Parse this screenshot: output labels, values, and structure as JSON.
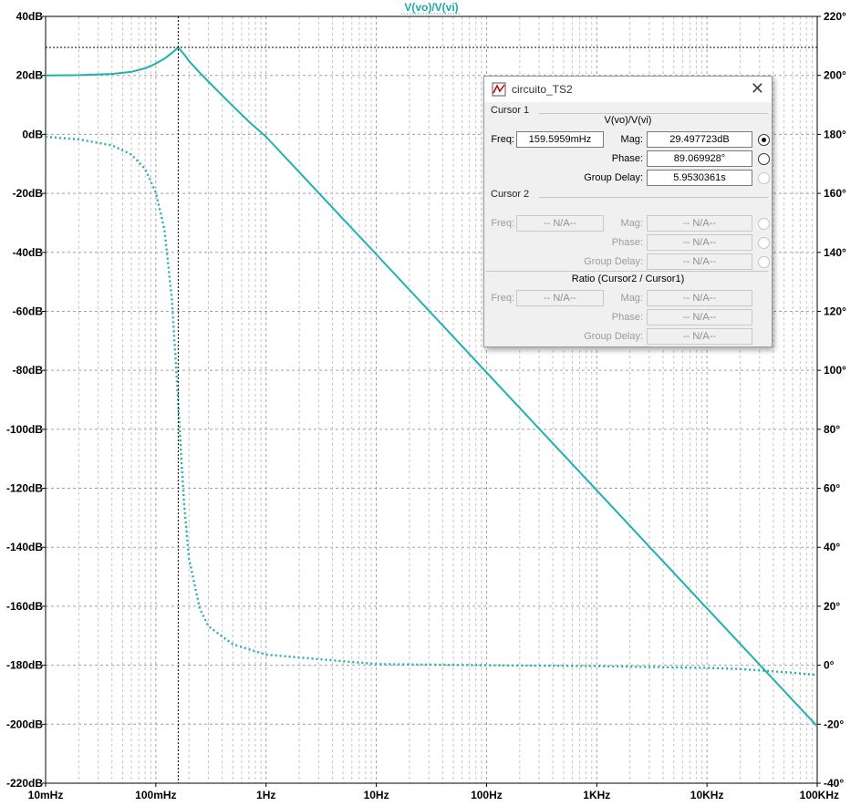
{
  "chart_data": {
    "type": "line",
    "title": "V(vo)/V(vi)",
    "x_scale": "log",
    "xlim": [
      0.01,
      100000
    ],
    "x_tick_values": [
      0.01,
      0.1,
      1,
      10,
      100,
      1000,
      10000,
      100000
    ],
    "x_tick_labels": [
      "10mHz",
      "100mHz",
      "1Hz",
      "10Hz",
      "100Hz",
      "1KHz",
      "10KHz",
      "100KHz"
    ],
    "ylim_left": [
      -220,
      40
    ],
    "y_left_ticks": [
      40,
      20,
      0,
      -20,
      -40,
      -60,
      -80,
      -100,
      -120,
      -140,
      -160,
      -180,
      -200,
      -220
    ],
    "y_left_tick_labels": [
      "40dB",
      "20dB",
      "0dB",
      "-20dB",
      "-40dB",
      "-60dB",
      "-80dB",
      "-100dB",
      "-120dB",
      "-140dB",
      "-160dB",
      "-180dB",
      "-200dB",
      "-220dB"
    ],
    "ylim_right": [
      -40,
      220
    ],
    "y_right_ticks": [
      220,
      200,
      180,
      160,
      140,
      120,
      100,
      80,
      60,
      40,
      20,
      0,
      -20,
      -40
    ],
    "y_right_tick_labels": [
      "220°",
      "200°",
      "180°",
      "160°",
      "140°",
      "120°",
      "100°",
      "80°",
      "60°",
      "40°",
      "20°",
      "0°",
      "-20°",
      "-40°"
    ],
    "grid": true,
    "series": [
      {
        "name": "Magnitude",
        "axis": "left",
        "style": "solid",
        "color": "#20b0b0",
        "x": [
          0.01,
          0.02,
          0.04,
          0.06,
          0.08,
          0.1,
          0.12,
          0.14,
          0.1596,
          0.18,
          0.2,
          0.25,
          0.3,
          0.4,
          0.5,
          0.7,
          1,
          2,
          5,
          10,
          100,
          1000,
          10000,
          100000
        ],
        "y": [
          20,
          20.1,
          20.5,
          21.2,
          22.4,
          24.0,
          25.7,
          27.6,
          29.5,
          27.2,
          24.9,
          20.9,
          17.9,
          13.2,
          9.6,
          4.3,
          -0.8,
          -12.8,
          -28.7,
          -40.7,
          -80.7,
          -120.7,
          -160.7,
          -200.7
        ]
      },
      {
        "name": "Phase",
        "axis": "right",
        "style": "dotted",
        "color": "#20b0b0",
        "x": [
          0.01,
          0.02,
          0.04,
          0.06,
          0.08,
          0.1,
          0.12,
          0.14,
          0.15,
          0.1596,
          0.17,
          0.18,
          0.2,
          0.25,
          0.3,
          0.5,
          1,
          10,
          100,
          1000,
          10000,
          20000,
          50000,
          100000
        ],
        "y": [
          179.2,
          178.3,
          176.3,
          173.2,
          168.3,
          160.2,
          147.5,
          124.0,
          106.0,
          89.1,
          70.5,
          55.6,
          36.2,
          19.2,
          13.2,
          7.1,
          3.6,
          0.4,
          0.0,
          -0.3,
          -0.9,
          -1.3,
          -2.3,
          -3.3
        ]
      }
    ],
    "cursor": {
      "x": 0.1596,
      "y": 29.5
    }
  },
  "dialog": {
    "title": "circuito_TS2",
    "close_glyph": "✕",
    "cursor1_label": "Cursor 1",
    "cursor1_expr": "V(vo)/V(vi)",
    "freq_label": "Freq:",
    "freq_value": "159.5959mHz",
    "mag_label": "Mag:",
    "mag_value": "29.497723dB",
    "phase_label": "Phase:",
    "phase_value": "89.069928°",
    "gd_label": "Group Delay:",
    "gd_value": "5.9530361s",
    "cursor2_label": "Cursor 2",
    "na": "-- N/A--",
    "ratio_label": "Ratio (Cursor2 / Cursor1)"
  }
}
